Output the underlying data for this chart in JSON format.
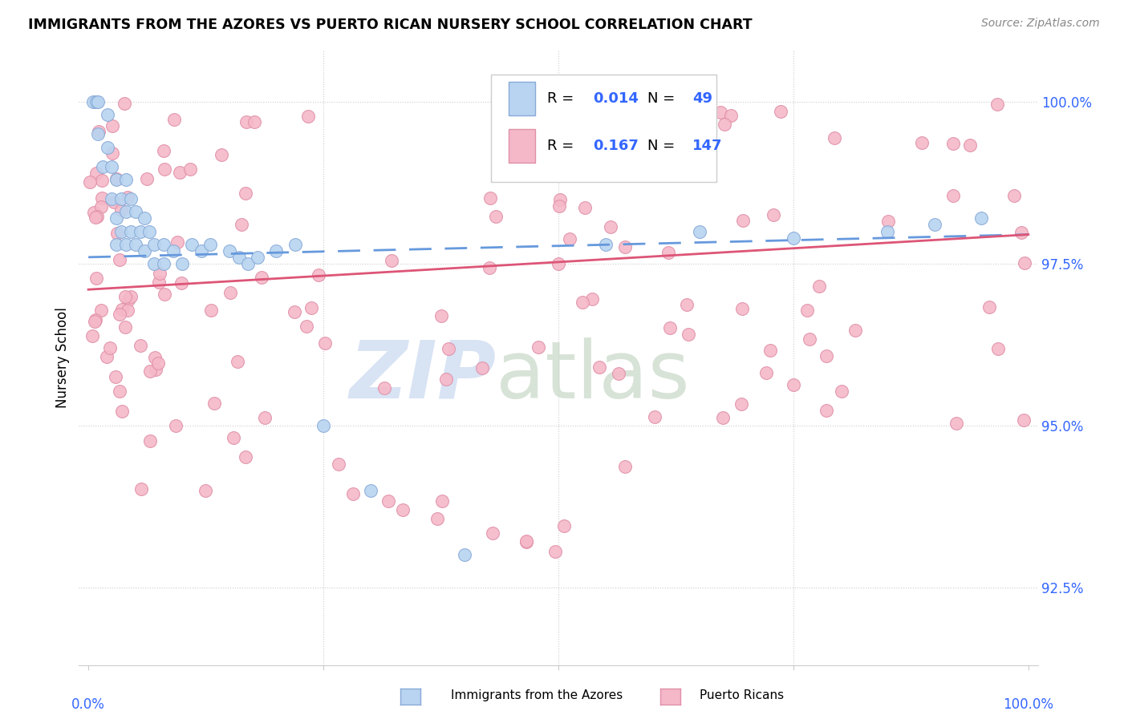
{
  "title": "IMMIGRANTS FROM THE AZORES VS PUERTO RICAN NURSERY SCHOOL CORRELATION CHART",
  "source": "Source: ZipAtlas.com",
  "ylabel": "Nursery School",
  "ytick_labels": [
    "92.5%",
    "95.0%",
    "97.5%",
    "100.0%"
  ],
  "ytick_values": [
    0.925,
    0.95,
    0.975,
    1.0
  ],
  "xmin": 0.0,
  "xmax": 1.0,
  "ymin": 0.913,
  "ymax": 1.008,
  "blue_color": "#b8d4f0",
  "blue_edge": "#88aad8",
  "pink_color": "#f5b8c8",
  "pink_edge": "#e090a8",
  "trend_blue_color": "#6699dd",
  "trend_pink_color": "#dd5577",
  "grid_color": "#cccccc",
  "tick_label_color": "#3366ff",
  "legend_text_color": "#000000",
  "legend_value_color": "#3366ff",
  "watermark_zip_color": "#c8d8f0",
  "watermark_atlas_color": "#c8d8c8",
  "bottom_legend_label1": "Immigrants from the Azores",
  "bottom_legend_label2": "Puerto Ricans"
}
